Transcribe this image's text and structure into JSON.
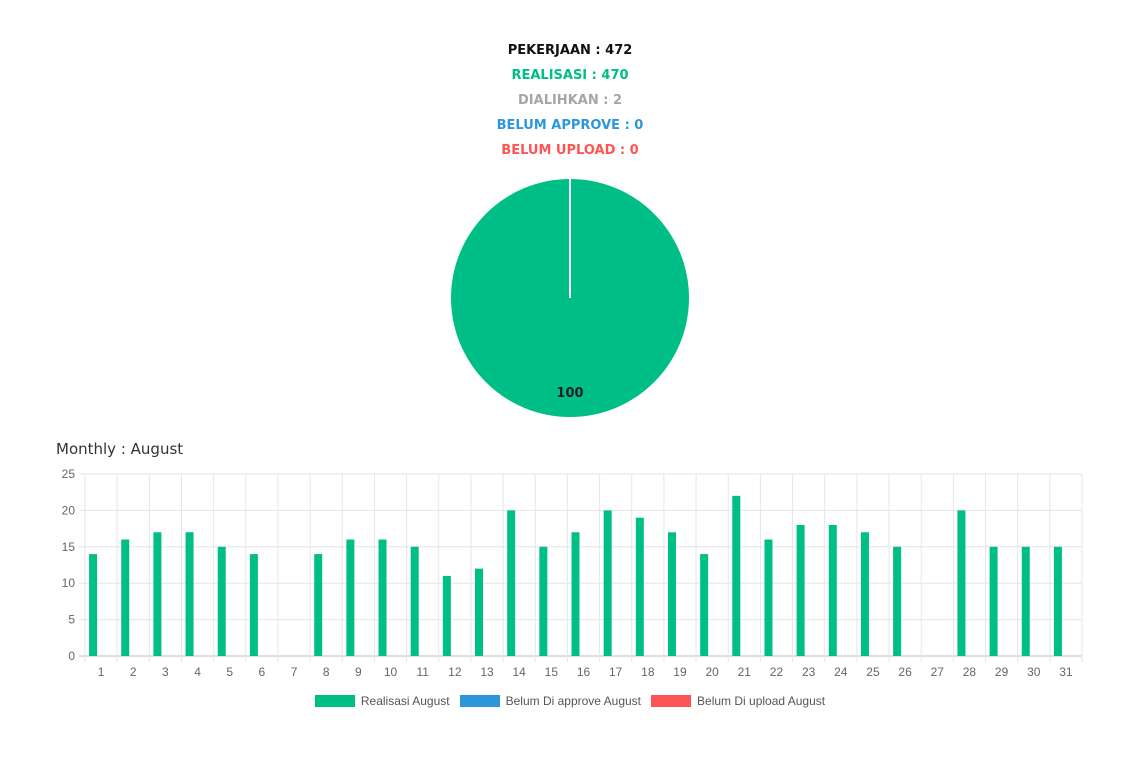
{
  "stats": {
    "pekerjaan": "PEKERJAAN : 472",
    "realisasi": "REALISASI : 470",
    "dialihkan": "DIALIHKAN : 2",
    "belum_approve": "BELUM APPROVE : 0",
    "belum_upload": "BELUM UPLOAD : 0"
  },
  "colors": {
    "black": "#111111",
    "green": "#00bf86",
    "gray": "#a6a6a6",
    "blue": "#2d97db",
    "red": "#ff5454"
  },
  "monthly_title": "Monthly : August",
  "chart_data": [
    {
      "type": "pie",
      "slices": [
        {
          "value": 100,
          "color": "#00bf86"
        }
      ],
      "data_labels": [
        "100"
      ]
    },
    {
      "type": "bar",
      "categories": [
        "1",
        "2",
        "3",
        "4",
        "5",
        "6",
        "7",
        "8",
        "9",
        "10",
        "11",
        "12",
        "13",
        "14",
        "15",
        "16",
        "17",
        "18",
        "19",
        "20",
        "21",
        "22",
        "23",
        "24",
        "25",
        "26",
        "27",
        "28",
        "29",
        "30",
        "31"
      ],
      "series": [
        {
          "name": "Realisasi August",
          "color": "#00bf86",
          "values": [
            14,
            16,
            17,
            17,
            15,
            14,
            0,
            14,
            16,
            16,
            15,
            11,
            12,
            20,
            15,
            17,
            20,
            19,
            17,
            14,
            22,
            16,
            18,
            18,
            17,
            15,
            0,
            20,
            15,
            15,
            15
          ]
        },
        {
          "name": "Belum Di approve August",
          "color": "#2d97db",
          "values": [
            0,
            0,
            0,
            0,
            0,
            0,
            0,
            0,
            0,
            0,
            0,
            0,
            0,
            0,
            0,
            0,
            0,
            0,
            0,
            0,
            0,
            0,
            0,
            0,
            0,
            0,
            0,
            0,
            0,
            0,
            0
          ]
        },
        {
          "name": "Belum Di upload August",
          "color": "#ff5454",
          "values": [
            0,
            0,
            0,
            0,
            0,
            0,
            0,
            0,
            0,
            0,
            0,
            0,
            0,
            0,
            0,
            0,
            0,
            0,
            0,
            0,
            0,
            0,
            0,
            0,
            0,
            0,
            0,
            0,
            0,
            0,
            0
          ]
        }
      ],
      "ylim": [
        0,
        25
      ],
      "yticks": [
        "0",
        "5",
        "10",
        "15",
        "20",
        "25"
      ],
      "grid": true,
      "legend": "bottom"
    }
  ]
}
